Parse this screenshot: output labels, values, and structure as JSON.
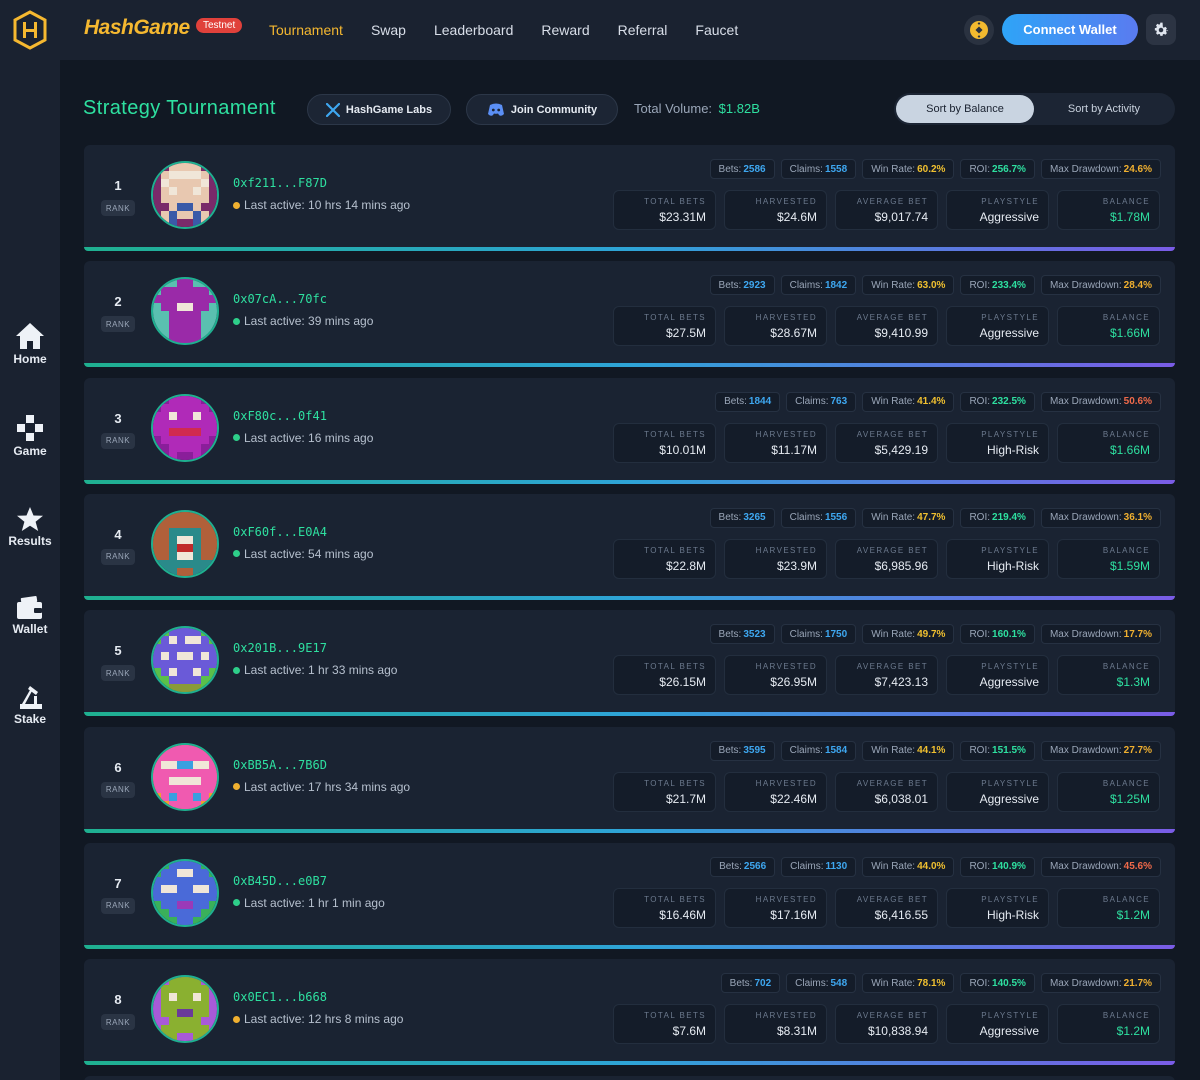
{
  "header": {
    "brand": "HashGame",
    "badge": "Testnet",
    "nav": [
      "Tournament",
      "Swap",
      "Leaderboard",
      "Reward",
      "Referral",
      "Faucet"
    ],
    "active_nav": "Tournament",
    "connect_label": "Connect Wallet"
  },
  "sidebar": {
    "items": [
      {
        "label": "Home",
        "icon": "home-icon"
      },
      {
        "label": "Game",
        "icon": "gamepad-icon"
      },
      {
        "label": "Results",
        "icon": "star-icon"
      },
      {
        "label": "Wallet",
        "icon": "wallet-icon"
      },
      {
        "label": "Stake",
        "icon": "stake-icon"
      }
    ]
  },
  "page": {
    "title": "Strategy Tournament",
    "labs_label": "HashGame Labs",
    "community_label": "Join Community",
    "total_volume_label": "Total Volume:",
    "total_volume_value": "$1.82B",
    "sort_balance": "Sort by Balance",
    "sort_activity": "Sort by Activity",
    "rank_label": "RANK",
    "chip_labels": {
      "bets": "Bets:",
      "claims": "Claims:",
      "win_rate": "Win Rate:",
      "roi": "ROI:",
      "max_drawdown": "Max Drawdown:"
    },
    "stat_labels": {
      "total_bets": "TOTAL BETS",
      "harvested": "HARVESTED",
      "average_bet": "AVERAGE BET",
      "playstyle": "PLAYSTYLE",
      "balance": "BALANCE"
    }
  },
  "colors": {
    "accent_green": "#2ee0a0",
    "accent_yellow": "#f5b830",
    "accent_blue": "#3ea7f0",
    "status_online": "#2ecf8a",
    "status_away": "#f0b030"
  },
  "entries": [
    {
      "rank": "1",
      "address": "0xf211...F87D",
      "last_active": "Last active: 10 hrs 14 mins ago",
      "status": "away",
      "bets": "2586",
      "claims": "1558",
      "win_rate": "60.2%",
      "roi": "256.7%",
      "max_drawdown": "24.6%",
      "total_bets": "$23.31M",
      "harvested": "$24.6M",
      "average_bet": "$9,017.74",
      "playstyle": "Aggressive",
      "balance": "$1.78M",
      "avatar": {
        "bg": "#7a2a6a",
        "fg": "#e8c8b0",
        "accent": "#3a5aa8",
        "pattern": [
          "00111100",
          "01222210",
          "02111120",
          "01211210",
          "01111110",
          "00133100",
          "01311310",
          "01300310"
        ]
      }
    },
    {
      "rank": "2",
      "address": "0x07cA...70fc",
      "last_active": "Last active: 39 mins ago",
      "status": "online",
      "bets": "2923",
      "claims": "1842",
      "win_rate": "63.0%",
      "roi": "233.4%",
      "max_drawdown": "28.4%",
      "total_bets": "$27.5M",
      "harvested": "$28.67M",
      "average_bet": "$9,410.99",
      "playstyle": "Aggressive",
      "balance": "$1.66M",
      "avatar": {
        "bg": "#5ac0b0",
        "fg": "#9a2aa8",
        "accent": "#5ac0b0",
        "pattern": [
          "00011000",
          "01111110",
          "11111111",
          "01122110",
          "00111100",
          "00111100",
          "00111100",
          "00111100"
        ]
      }
    },
    {
      "rank": "3",
      "address": "0xF80c...0f41",
      "last_active": "Last active: 16 mins ago",
      "status": "online",
      "bets": "1844",
      "claims": "763",
      "win_rate": "41.4%",
      "roi": "232.5%",
      "max_drawdown": "50.6%",
      "total_bets": "$10.01M",
      "harvested": "$11.17M",
      "average_bet": "$5,429.19",
      "playstyle": "High-Risk",
      "balance": "$1.66M",
      "avatar": {
        "bg": "#8a1e9a",
        "fg": "#b02ab8",
        "accent": "#d02a50",
        "pattern": [
          "00111100",
          "01111110",
          "11211211",
          "11111111",
          "11333311",
          "01111110",
          "00111100",
          "00100100"
        ]
      }
    },
    {
      "rank": "4",
      "address": "0xF60f...E0A4",
      "last_active": "Last active: 54 mins ago",
      "status": "online",
      "bets": "3265",
      "claims": "1556",
      "win_rate": "47.7%",
      "roi": "219.4%",
      "max_drawdown": "36.1%",
      "total_bets": "$22.8M",
      "harvested": "$23.9M",
      "average_bet": "$6,985.96",
      "playstyle": "High-Risk",
      "balance": "$1.59M",
      "avatar": {
        "bg": "#2a8a8a",
        "fg": "#b0603a",
        "accent": "#c02a2a",
        "pattern": [
          "11111111",
          "11111111",
          "11000011",
          "11022011",
          "11033011",
          "11022011",
          "00000000",
          "00011000"
        ]
      }
    },
    {
      "rank": "5",
      "address": "0x201B...9E17",
      "last_active": "Last active: 1 hr 33 mins ago",
      "status": "online",
      "bets": "3523",
      "claims": "1750",
      "win_rate": "49.7%",
      "roi": "160.1%",
      "max_drawdown": "17.7%",
      "total_bets": "$26.15M",
      "harvested": "$26.95M",
      "average_bet": "$7,423.13",
      "playstyle": "Aggressive",
      "balance": "$1.3M",
      "avatar": {
        "bg": "#5ac04a",
        "fg": "#6a5ad8",
        "accent": "#8a9a3a",
        "pattern": [
          "00111100",
          "01212210",
          "11111111",
          "12122121",
          "11111111",
          "01211210",
          "00111100",
          "00333300"
        ]
      }
    },
    {
      "rank": "6",
      "address": "0xBB5A...7B6D",
      "last_active": "Last active: 17 hrs 34 mins ago",
      "status": "away",
      "bets": "3595",
      "claims": "1584",
      "win_rate": "44.1%",
      "roi": "151.5%",
      "max_drawdown": "27.7%",
      "total_bets": "$21.7M",
      "harvested": "$22.46M",
      "average_bet": "$6,038.01",
      "playstyle": "Aggressive",
      "balance": "$1.25M",
      "avatar": {
        "bg": "#f0a030",
        "fg": "#f05ab0",
        "accent": "#3aa0e0",
        "pattern": [
          "01111110",
          "11111111",
          "12233221",
          "11111111",
          "11222211",
          "11111111",
          "01311310",
          "00111100"
        ]
      }
    },
    {
      "rank": "7",
      "address": "0xB45D...e0B7",
      "last_active": "Last active: 1 hr 1 min ago",
      "status": "online",
      "bets": "2566",
      "claims": "1130",
      "win_rate": "44.0%",
      "roi": "140.9%",
      "max_drawdown": "45.6%",
      "total_bets": "$16.46M",
      "harvested": "$17.16M",
      "average_bet": "$6,416.55",
      "playstyle": "High-Risk",
      "balance": "$1.2M",
      "avatar": {
        "bg": "#3ab05a",
        "fg": "#4a6ad8",
        "accent": "#9a3ab8",
        "pattern": [
          "00111100",
          "01122110",
          "11111111",
          "12211221",
          "11111111",
          "01133110",
          "00111100",
          "00011000"
        ]
      }
    },
    {
      "rank": "8",
      "address": "0x0EC1...b668",
      "last_active": "Last active: 12 hrs 8 mins ago",
      "status": "away",
      "bets": "702",
      "claims": "548",
      "win_rate": "78.1%",
      "roi": "140.5%",
      "max_drawdown": "21.7%",
      "total_bets": "$7.6M",
      "harvested": "$8.31M",
      "average_bet": "$10,838.94",
      "playstyle": "Aggressive",
      "balance": "$1.2M",
      "avatar": {
        "bg": "#a85ad8",
        "fg": "#8ab030",
        "accent": "#6a3a9a",
        "pattern": [
          "00111100",
          "01111110",
          "01211210",
          "01111110",
          "01133110",
          "00111100",
          "01111110",
          "01100110"
        ]
      }
    }
  ]
}
